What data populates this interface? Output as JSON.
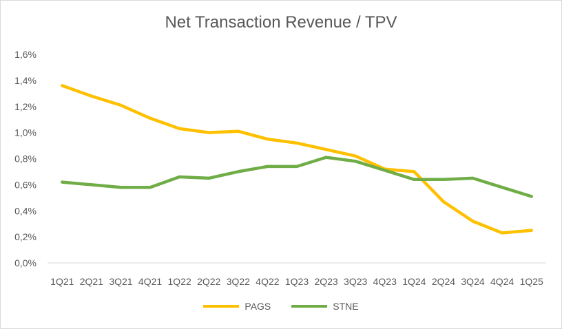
{
  "chart_data": {
    "type": "line",
    "title": "Net Transaction Revenue / TPV",
    "xlabel": "",
    "ylabel": "",
    "categories": [
      "1Q21",
      "2Q21",
      "3Q21",
      "4Q21",
      "1Q22",
      "2Q22",
      "3Q22",
      "4Q22",
      "1Q23",
      "2Q23",
      "3Q23",
      "4Q23",
      "1Q24",
      "2Q24",
      "3Q24",
      "4Q24",
      "1Q25"
    ],
    "y_ticks": [
      "0,0%",
      "0,2%",
      "0,4%",
      "0,6%",
      "0,8%",
      "1,0%",
      "1,2%",
      "1,4%",
      "1,6%"
    ],
    "ylim": [
      0,
      1.6
    ],
    "grid": false,
    "legend_position": "bottom",
    "series": [
      {
        "name": "PAGS",
        "color": "#ffc000",
        "values": [
          1.36,
          1.28,
          1.21,
          1.11,
          1.03,
          1.0,
          1.01,
          0.95,
          0.92,
          0.87,
          0.82,
          0.72,
          0.7,
          0.47,
          0.32,
          0.23,
          0.25
        ]
      },
      {
        "name": "STNE",
        "color": "#70ad47",
        "values": [
          0.62,
          0.6,
          0.58,
          0.58,
          0.66,
          0.65,
          0.7,
          0.74,
          0.74,
          0.81,
          0.78,
          0.71,
          0.64,
          0.64,
          0.65,
          0.58,
          0.51
        ]
      }
    ]
  }
}
